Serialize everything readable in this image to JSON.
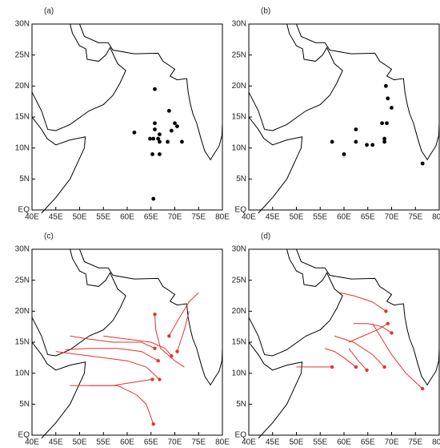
{
  "xlim": [
    40,
    80
  ],
  "ylim": [
    0,
    30
  ],
  "xticks": [
    {
      "value": 40,
      "label": "40E"
    },
    {
      "value": 45,
      "label": "45E"
    },
    {
      "value": 50,
      "label": "50E"
    },
    {
      "value": 55,
      "label": "55E"
    },
    {
      "value": 60,
      "label": "60E"
    },
    {
      "value": 65,
      "label": "65E"
    },
    {
      "value": 70,
      "label": "70E"
    },
    {
      "value": 75,
      "label": "75E"
    },
    {
      "value": 80,
      "label": "80E"
    }
  ],
  "yticks": [
    {
      "value": 0,
      "label": "EQ"
    },
    {
      "value": 5,
      "label": "5N"
    },
    {
      "value": 10,
      "label": "10N"
    },
    {
      "value": 15,
      "label": "15N"
    },
    {
      "value": 20,
      "label": "20N"
    },
    {
      "value": 25,
      "label": "25N"
    },
    {
      "value": 30,
      "label": "30N"
    }
  ],
  "panels": [
    {
      "label": "(a)",
      "color": "#000000",
      "points": {
        "lon": [
          65.8,
          65.8,
          65.8,
          61.5,
          64.8,
          65.5,
          66.5,
          66.8,
          66.8,
          68.5,
          68.8,
          69.3,
          70,
          70.5,
          71.5,
          65.3,
          66.8,
          65.5
        ],
        "lat": [
          19.5,
          14,
          13,
          12.5,
          11.5,
          11.5,
          11.5,
          12.2,
          11,
          11,
          16,
          12.8,
          14,
          13.5,
          11,
          9,
          9,
          1.8
        ]
      }
    },
    {
      "label": "(b)",
      "color": "#000000",
      "points": {
        "lon": [
          68.8,
          69.2,
          70,
          69,
          68,
          62.5,
          57.5,
          60,
          62.5,
          64.8,
          66,
          68.5,
          68.5,
          76.5
        ],
        "lat": [
          20,
          18,
          16.5,
          14,
          14,
          13,
          11,
          9,
          11,
          10.5,
          10.5,
          11,
          11.5,
          7.5
        ]
      }
    },
    {
      "label": "(c)",
      "color": "#e8322f",
      "tracks": [
        {
          "lon": [
            65.5,
            64,
            62,
            58,
            53,
            48
          ],
          "lat": [
            1.8,
            5,
            6.5,
            8,
            8,
            8
          ]
        },
        {
          "lon": [
            65.3,
            61,
            57,
            52
          ],
          "lat": [
            9,
            8.5,
            8,
            8
          ]
        },
        {
          "lon": [
            66.8,
            64,
            60,
            55,
            50,
            45
          ],
          "lat": [
            9,
            11,
            12,
            12.5,
            13,
            13.5
          ]
        },
        {
          "lon": [
            66.5,
            63,
            58,
            52,
            47
          ],
          "lat": [
            12,
            13.5,
            14,
            14,
            13.8
          ]
        },
        {
          "lon": [
            65.8,
            63,
            57,
            52,
            48
          ],
          "lat": [
            14,
            15,
            15,
            15.5,
            16
          ]
        },
        {
          "lon": [
            69.3,
            68,
            65,
            60,
            55
          ],
          "lat": [
            12.8,
            14,
            15,
            15.5,
            16
          ]
        },
        {
          "lon": [
            68.8,
            71,
            73,
            75
          ],
          "lat": [
            16,
            19,
            21.5,
            23
          ]
        },
        {
          "lon": [
            70.5,
            72,
            73
          ],
          "lat": [
            13.5,
            17,
            20
          ]
        },
        {
          "lon": [
            65.8,
            66,
            67,
            70,
            72
          ],
          "lat": [
            19.5,
            17,
            14,
            12,
            11
          ]
        }
      ]
    },
    {
      "label": "(d)",
      "color": "#e8322f",
      "tracks": [
        {
          "lon": [
            76.5,
            73,
            70,
            68,
            66
          ],
          "lat": [
            7.5,
            10,
            13,
            15.5,
            18
          ]
        },
        {
          "lon": [
            68.8,
            66,
            62,
            59
          ],
          "lat": [
            20,
            21.5,
            22.5,
            23
          ]
        },
        {
          "lon": [
            69.2,
            67,
            64,
            61
          ],
          "lat": [
            18,
            17,
            16,
            15
          ]
        },
        {
          "lon": [
            70,
            68,
            65,
            62
          ],
          "lat": [
            16.5,
            17.5,
            18,
            18
          ]
        },
        {
          "lon": [
            57.5,
            55,
            52,
            50
          ],
          "lat": [
            11,
            11,
            11,
            11
          ]
        },
        {
          "lon": [
            62.5,
            60,
            58,
            56
          ],
          "lat": [
            11,
            12.5,
            13.5,
            14
          ]
        },
        {
          "lon": [
            68.5,
            66,
            62,
            58
          ],
          "lat": [
            11,
            13,
            15,
            16
          ]
        },
        {
          "lon": [
            64.8,
            63,
            61
          ],
          "lat": [
            10.5,
            12,
            14
          ]
        }
      ]
    }
  ]
}
